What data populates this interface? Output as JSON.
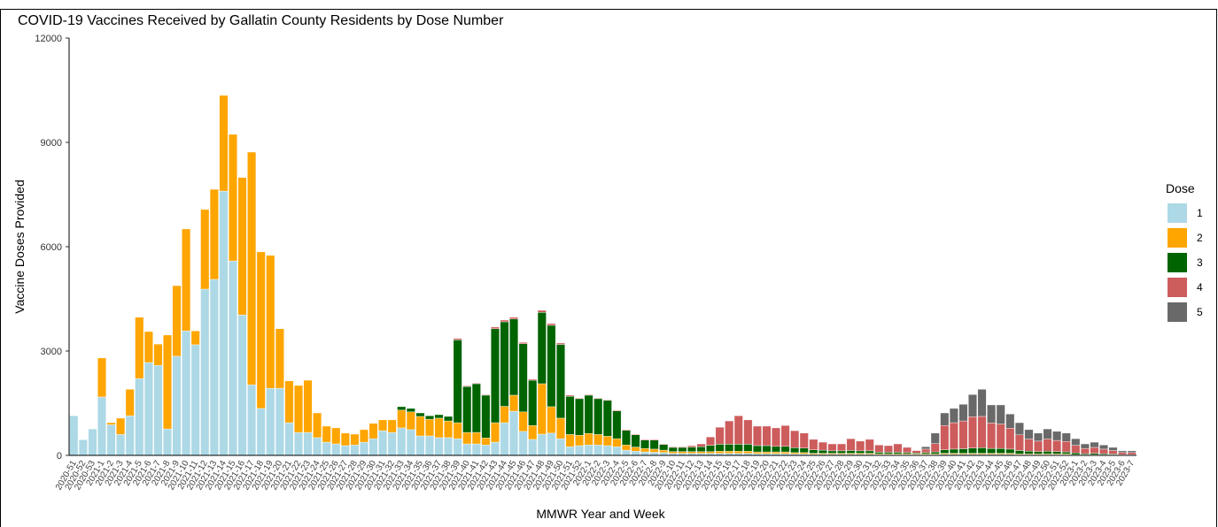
{
  "chart_data": {
    "type": "stacked_bar",
    "title": "COVID-19 Vaccines Received by Gallatin County Residents by Dose Number",
    "x_label": "MMWR Year and Week",
    "y_label": "Vaccine Doses Provided",
    "legend_title": "Dose",
    "categories": [
      "2020-51",
      "2020-52",
      "2020-53",
      "2021-1",
      "2021-2",
      "2021-3",
      "2021-4",
      "2021-5",
      "2021-6",
      "2021-7",
      "2021-8",
      "2021-9",
      "2021-10",
      "2021-11",
      "2021-12",
      "2021-13",
      "2021-14",
      "2021-15",
      "2021-16",
      "2021-17",
      "2021-18",
      "2021-19",
      "2021-20",
      "2021-21",
      "2021-22",
      "2021-23",
      "2021-24",
      "2021-25",
      "2021-26",
      "2021-27",
      "2021-28",
      "2021-29",
      "2021-30",
      "2021-31",
      "2021-32",
      "2021-33",
      "2021-34",
      "2021-35",
      "2021-36",
      "2021-37",
      "2021-38",
      "2021-39",
      "2021-40",
      "2021-41",
      "2021-42",
      "2021-43",
      "2021-44",
      "2021-45",
      "2021-46",
      "2021-47",
      "2021-48",
      "2021-49",
      "2021-50",
      "2021-51",
      "2021-52",
      "2022-1",
      "2022-2",
      "2022-3",
      "2022-4",
      "2022-5",
      "2022-6",
      "2022-7",
      "2022-8",
      "2022-9",
      "2022-10",
      "2022-11",
      "2022-12",
      "2022-13",
      "2022-14",
      "2022-15",
      "2022-16",
      "2022-17",
      "2022-18",
      "2022-19",
      "2022-20",
      "2022-21",
      "2022-22",
      "2022-23",
      "2022-24",
      "2022-25",
      "2022-26",
      "2022-27",
      "2022-28",
      "2022-29",
      "2022-30",
      "2022-31",
      "2022-32",
      "2022-33",
      "2022-34",
      "2022-35",
      "2022-36",
      "2022-37",
      "2022-38",
      "2022-39",
      "2022-40",
      "2022-41",
      "2022-42",
      "2022-43",
      "2022-44",
      "2022-45",
      "2022-46",
      "2022-47",
      "2022-48",
      "2022-49",
      "2022-50",
      "2022-51",
      "2022-52",
      "2023-1",
      "2023-2",
      "2023-3",
      "2023-4",
      "2023-5",
      "2023-6",
      "2023-7"
    ],
    "series": [
      {
        "name": "1",
        "color": "#add8e6",
        "values": [
          1140,
          450,
          760,
          1680,
          880,
          600,
          1140,
          2210,
          2670,
          2590,
          760,
          2850,
          3580,
          3180,
          4780,
          5060,
          7600,
          5590,
          4040,
          2030,
          1350,
          1930,
          1930,
          940,
          660,
          660,
          510,
          380,
          330,
          280,
          300,
          380,
          480,
          710,
          660,
          790,
          740,
          560,
          560,
          510,
          510,
          480,
          330,
          330,
          300,
          380,
          940,
          1270,
          690,
          460,
          610,
          640,
          480,
          250,
          280,
          300,
          300,
          280,
          250,
          150,
          120,
          100,
          90,
          80,
          60,
          60,
          60,
          60,
          60,
          60,
          60,
          60,
          60,
          50,
          50,
          50,
          50,
          40,
          40,
          30,
          30,
          30,
          30,
          30,
          30,
          30,
          20,
          20,
          20,
          20,
          20,
          20,
          20,
          30,
          30,
          30,
          30,
          30,
          30,
          30,
          30,
          20,
          20,
          20,
          20,
          20,
          20,
          10,
          10,
          10,
          10,
          10,
          5,
          5
        ]
      },
      {
        "name": "2",
        "color": "#ffa500",
        "values": [
          0,
          0,
          0,
          1120,
          60,
          470,
          760,
          1760,
          890,
          610,
          2700,
          2030,
          2930,
          400,
          2290,
          2590,
          2750,
          3640,
          3950,
          6690,
          4500,
          3820,
          1710,
          1200,
          1350,
          1500,
          710,
          460,
          460,
          360,
          310,
          360,
          440,
          310,
          360,
          510,
          510,
          560,
          480,
          560,
          480,
          460,
          330,
          330,
          200,
          560,
          470,
          460,
          560,
          400,
          1450,
          760,
          590,
          350,
          300,
          330,
          300,
          270,
          230,
          150,
          120,
          100,
          90,
          70,
          50,
          50,
          50,
          50,
          50,
          60,
          60,
          60,
          60,
          50,
          50,
          50,
          50,
          40,
          40,
          30,
          30,
          30,
          30,
          30,
          30,
          30,
          20,
          20,
          20,
          20,
          20,
          20,
          20,
          30,
          30,
          30,
          30,
          30,
          30,
          30,
          30,
          20,
          20,
          20,
          20,
          20,
          20,
          10,
          10,
          10,
          10,
          10,
          5,
          5
        ]
      },
      {
        "name": "3",
        "color": "#006400",
        "values": [
          0,
          0,
          0,
          0,
          0,
          0,
          0,
          0,
          0,
          0,
          0,
          0,
          0,
          0,
          0,
          0,
          0,
          0,
          0,
          0,
          0,
          0,
          0,
          0,
          0,
          0,
          0,
          0,
          0,
          0,
          0,
          0,
          0,
          0,
          0,
          100,
          100,
          100,
          100,
          100,
          130,
          2380,
          1320,
          1400,
          1230,
          2700,
          2430,
          2190,
          1960,
          1300,
          2050,
          2340,
          2120,
          1100,
          1050,
          1100,
          1030,
          1030,
          800,
          420,
          350,
          240,
          260,
          160,
          120,
          120,
          130,
          140,
          180,
          200,
          200,
          200,
          200,
          180,
          180,
          160,
          160,
          140,
          130,
          100,
          90,
          70,
          70,
          80,
          70,
          70,
          50,
          50,
          50,
          40,
          30,
          40,
          60,
          100,
          120,
          130,
          150,
          160,
          140,
          140,
          120,
          100,
          80,
          70,
          80,
          70,
          60,
          50,
          30,
          40,
          30,
          20,
          10,
          10
        ]
      },
      {
        "name": "4",
        "color": "#cd5c5c",
        "values": [
          0,
          0,
          0,
          0,
          0,
          0,
          0,
          0,
          0,
          0,
          0,
          0,
          0,
          0,
          0,
          0,
          0,
          0,
          0,
          0,
          0,
          0,
          0,
          0,
          0,
          0,
          0,
          0,
          0,
          0,
          0,
          0,
          0,
          0,
          0,
          0,
          0,
          0,
          0,
          0,
          0,
          40,
          20,
          20,
          20,
          50,
          50,
          50,
          40,
          30,
          60,
          50,
          40,
          30,
          20,
          20,
          20,
          20,
          20,
          20,
          20,
          20,
          20,
          20,
          20,
          20,
          40,
          80,
          240,
          490,
          670,
          820,
          700,
          560,
          560,
          530,
          600,
          490,
          430,
          300,
          230,
          200,
          200,
          340,
          280,
          330,
          210,
          190,
          240,
          150,
          70,
          100,
          240,
          700,
          760,
          800,
          900,
          900,
          730,
          700,
          600,
          450,
          350,
          300,
          350,
          320,
          300,
          220,
          150,
          170,
          130,
          100,
          60,
          60
        ]
      },
      {
        "name": "5",
        "color": "#696969",
        "values": [
          0,
          0,
          0,
          0,
          0,
          0,
          0,
          0,
          0,
          0,
          0,
          0,
          0,
          0,
          0,
          0,
          0,
          0,
          0,
          0,
          0,
          0,
          0,
          0,
          0,
          0,
          0,
          0,
          0,
          0,
          0,
          0,
          0,
          0,
          0,
          0,
          0,
          0,
          0,
          0,
          0,
          0,
          0,
          0,
          0,
          0,
          0,
          0,
          0,
          0,
          0,
          0,
          0,
          0,
          0,
          0,
          0,
          0,
          0,
          0,
          0,
          0,
          0,
          0,
          0,
          0,
          0,
          0,
          0,
          0,
          0,
          0,
          0,
          0,
          0,
          0,
          0,
          0,
          0,
          0,
          0,
          0,
          0,
          0,
          0,
          0,
          0,
          0,
          0,
          0,
          10,
          70,
          300,
          360,
          410,
          480,
          640,
          780,
          520,
          550,
          410,
          350,
          270,
          230,
          290,
          260,
          240,
          190,
          130,
          150,
          120,
          90,
          50,
          50
        ]
      }
    ],
    "ylim": [
      0,
      12000
    ],
    "yticks": [
      0,
      3000,
      6000,
      9000,
      12000
    ],
    "grid": false,
    "legend": "right"
  }
}
